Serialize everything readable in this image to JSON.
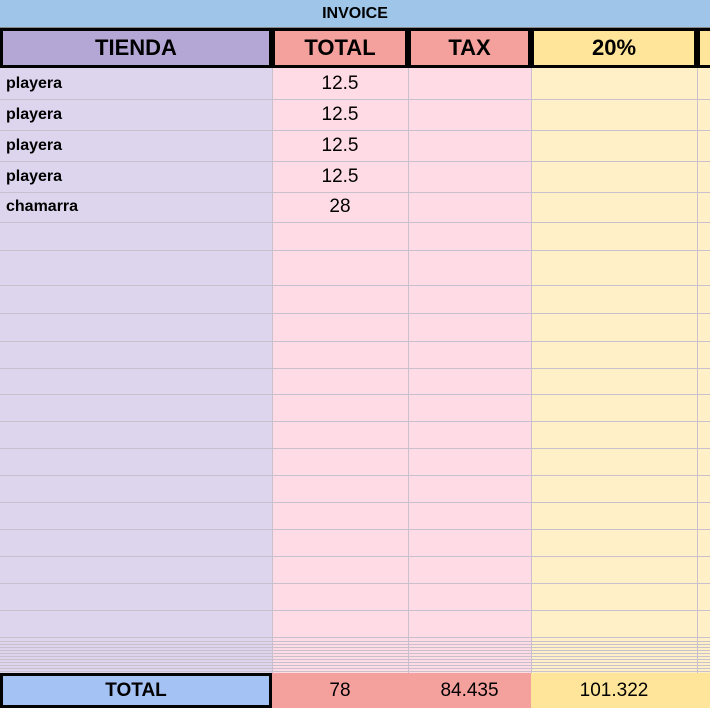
{
  "sheet": {
    "banner": "INVOICE",
    "header": [
      "TIENDA",
      "TOTAL",
      "TAX",
      "20%"
    ],
    "rows": [
      [
        "playera",
        12.5
      ],
      [
        "playera",
        12.5
      ],
      [
        "playera",
        12.5
      ],
      [
        "playera",
        12.5
      ],
      [
        "chamarra",
        28
      ]
    ],
    "totals": [
      "TOTAL",
      78,
      84.435,
      101.322
    ]
  }
}
